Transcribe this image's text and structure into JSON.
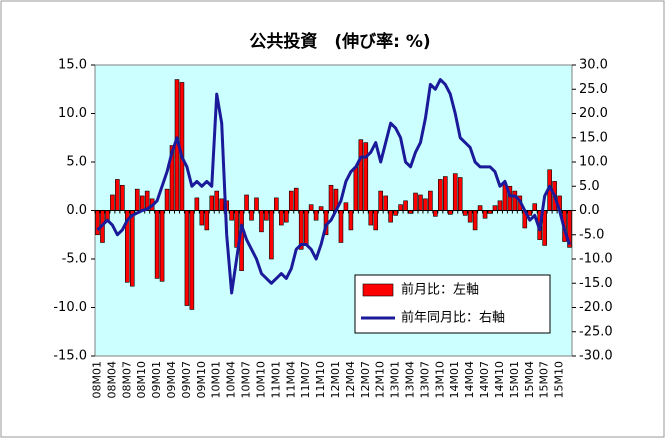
{
  "chart_data": {
    "type": "bar_line",
    "title": "公共投資　(伸び率: %)",
    "categories": [
      "08M01",
      null,
      null,
      "08M04",
      null,
      null,
      "08M07",
      null,
      null,
      "08M10",
      null,
      null,
      "09M01",
      null,
      null,
      "09M04",
      null,
      null,
      "09M07",
      null,
      null,
      "09M10",
      null,
      null,
      "10M01",
      null,
      null,
      "10M04",
      null,
      null,
      "10M07",
      null,
      null,
      "10M10",
      null,
      null,
      "11M01",
      null,
      null,
      "11M04",
      null,
      null,
      "11M07",
      null,
      null,
      "11M10",
      null,
      null,
      "12M01",
      null,
      null,
      "12M04",
      null,
      null,
      "12M07",
      null,
      null,
      "12M10",
      null,
      null,
      "13M01",
      null,
      null,
      "13M04",
      null,
      null,
      "13M07",
      null,
      null,
      "13M10",
      null,
      null,
      "14M01",
      null,
      null,
      "14M04",
      null,
      null,
      "14M07",
      null,
      null,
      "14M10",
      null,
      null,
      "15M01",
      null,
      null,
      "15M04",
      null,
      null,
      "15M07",
      null,
      null,
      "15M10",
      null,
      null
    ],
    "series": [
      {
        "name": "前月比：左軸",
        "type": "bar",
        "color": "#ff0000",
        "values": [
          -2.5,
          -3.3,
          -1.0,
          1.6,
          3.2,
          2.6,
          -7.4,
          -7.8,
          2.2,
          1.5,
          2.0,
          1.2,
          -7.0,
          -7.3,
          2.2,
          6.7,
          13.5,
          13.2,
          -9.8,
          -10.2,
          1.3,
          -1.5,
          -2.0,
          1.5,
          2.0,
          1.2,
          1.0,
          -1.0,
          -3.8,
          -6.2,
          1.6,
          -1.0,
          1.3,
          -2.2,
          -1.0,
          -5.0,
          1.3,
          -1.5,
          -1.2,
          2.0,
          2.3,
          -4.0,
          -3.5,
          0.6,
          -1.0,
          0.4,
          -2.5,
          2.6,
          2.2,
          -3.3,
          0.8,
          -2.0,
          4.5,
          7.3,
          7.0,
          -1.5,
          -2.0,
          2.0,
          1.5,
          -1.2,
          -0.5,
          0.6,
          1.0,
          -0.3,
          1.8,
          1.6,
          1.2,
          2.0,
          -0.6,
          3.2,
          3.5,
          -0.4,
          3.8,
          3.4,
          -0.5,
          -1.2,
          -2.0,
          0.5,
          -0.8,
          -0.3,
          0.5,
          1.0,
          2.7,
          2.5,
          2.0,
          1.5,
          -1.8,
          -0.5,
          0.7,
          -3.0,
          -3.6,
          4.2,
          3.0,
          1.5,
          -3.2,
          -3.8
        ]
      },
      {
        "name": "前年同月比：右軸",
        "type": "line",
        "axis": "y2",
        "color": "#1a1a9a",
        "values": [
          -4,
          -3,
          -2,
          -3,
          -5,
          -4,
          -2,
          -1,
          -0.5,
          0,
          0.3,
          1,
          2,
          5,
          8,
          12,
          15,
          11,
          9,
          5,
          6,
          5,
          6,
          5,
          24,
          18,
          -5,
          -17,
          -10,
          -3,
          -6,
          -8,
          -10,
          -13,
          -14,
          -15,
          -14,
          -13,
          -14,
          -12,
          -8,
          -7,
          -7,
          -8,
          -10,
          -7,
          -3,
          -2,
          0,
          2,
          6,
          8,
          9,
          11,
          11,
          12,
          14,
          10,
          14,
          18,
          17,
          15,
          10,
          9,
          12,
          14,
          19,
          26,
          25,
          27,
          26,
          24,
          20,
          15,
          14,
          13,
          10,
          9,
          9,
          9,
          8,
          5,
          6,
          3,
          3,
          2,
          0,
          -2,
          -1,
          -4,
          3,
          5,
          3,
          0,
          -4,
          -7
        ]
      }
    ],
    "ylim": [
      -15,
      15
    ],
    "yticks": [
      {
        "value": -15,
        "label": "-15.0"
      },
      {
        "value": -10,
        "label": "-10.0"
      },
      {
        "value": -5,
        "label": "-5.0"
      },
      {
        "value": 0,
        "label": "0.0"
      },
      {
        "value": 5,
        "label": "5.0"
      },
      {
        "value": 10,
        "label": "10.0"
      },
      {
        "value": 15,
        "label": "15.0"
      }
    ],
    "y2lim": [
      -30,
      30
    ],
    "y2ticks": [
      {
        "value": -30,
        "label": "-30.0"
      },
      {
        "value": -25,
        "label": "-25.0"
      },
      {
        "value": -20,
        "label": "-20.0"
      },
      {
        "value": -15,
        "label": "-15.0"
      },
      {
        "value": -10,
        "label": "-10.0"
      },
      {
        "value": -5,
        "label": "-5.0"
      },
      {
        "value": 0,
        "label": "0.0"
      },
      {
        "value": 5,
        "label": "5.0"
      },
      {
        "value": 10,
        "label": "10.0"
      },
      {
        "value": 15,
        "label": "15.0"
      },
      {
        "value": 20,
        "label": "20.0"
      },
      {
        "value": 25,
        "label": "25.0"
      },
      {
        "value": 30,
        "label": "30.0"
      }
    ],
    "grid": false,
    "plot_background": "#ccffff",
    "legend": "lower right"
  }
}
